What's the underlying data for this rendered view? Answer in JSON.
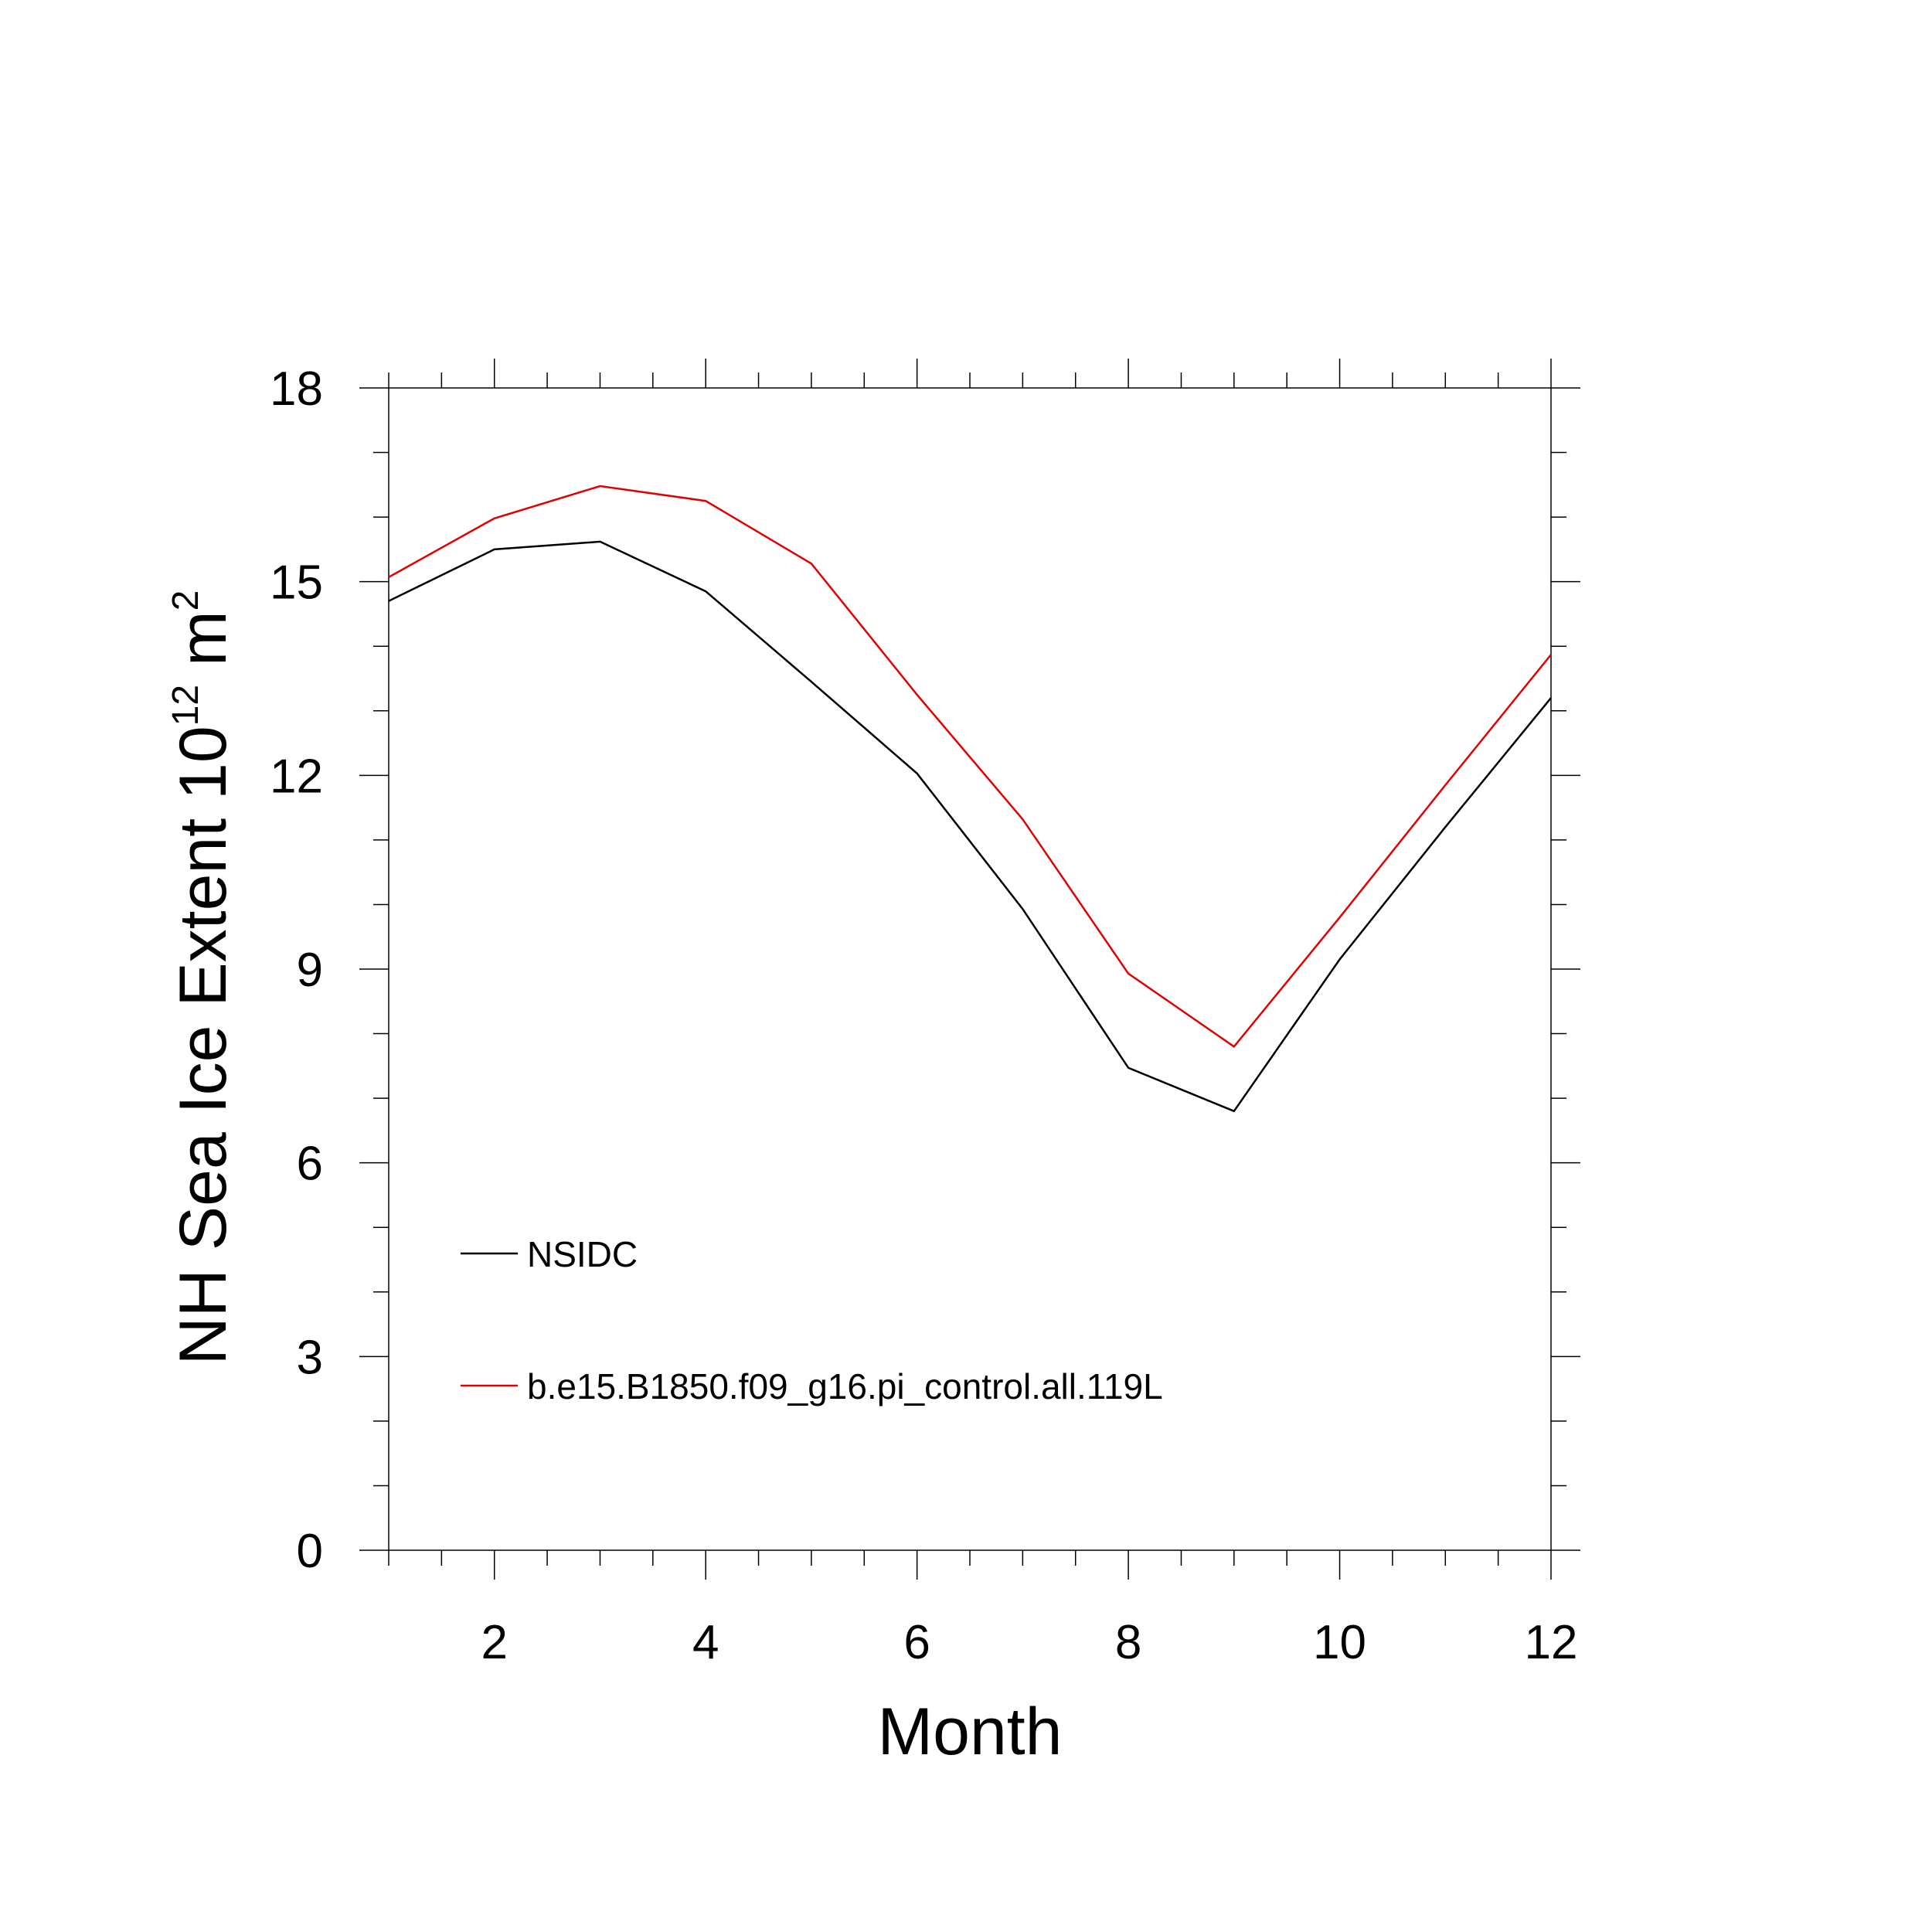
{
  "chart_data": {
    "type": "line",
    "xlabel": "Month",
    "ylabel": {
      "base": "NH Sea Ice Extent 10",
      "exponent": "12",
      "unit": " m",
      "unit_exponent": "2"
    },
    "xlim": [
      1,
      12
    ],
    "ylim": [
      0,
      18
    ],
    "x_ticks": [
      2,
      4,
      6,
      8,
      10,
      12
    ],
    "y_ticks": [
      0,
      3,
      6,
      9,
      12,
      15,
      18
    ],
    "grid": false,
    "legend_position": "lower-left",
    "x": [
      1,
      2,
      3,
      4,
      5,
      6,
      7,
      8,
      9,
      10,
      11,
      12
    ],
    "series": [
      {
        "name": "NSIDC",
        "color": "#000000",
        "values": [
          14.7,
          15.5,
          15.62,
          14.85,
          13.45,
          12.03,
          9.93,
          7.47,
          6.8,
          9.15,
          11.2,
          13.2
        ]
      },
      {
        "name": "b.e15.B1850.f09_g16.pi_control.all.119L",
        "color": "#e00000",
        "values": [
          15.07,
          15.98,
          16.48,
          16.25,
          15.28,
          13.25,
          11.32,
          8.93,
          7.8,
          9.8,
          11.85,
          13.87
        ]
      }
    ]
  }
}
